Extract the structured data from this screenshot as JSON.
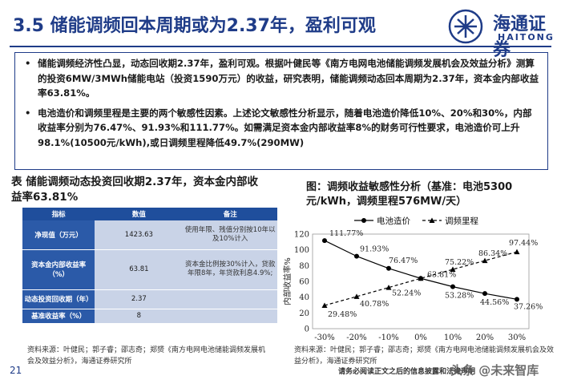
{
  "title": "3.5 储能调频回本周期或为2.37年，盈利可观",
  "logo": {
    "cn": "海通证券",
    "en": "HAITONG"
  },
  "bullets": [
    "储能调频经济性凸显，动态回收期2.37年，盈利可观。根据叶健民等《南方电网电池储能调频发展机会及效益分析》测算的投资6MW/3MWh储能电站（投资1590万元）的收益，研究表明，储能调频动态回本周期为2.37年，资本金内部收益率63.81%。",
    "电池造价和调频里程是主要的两个敏感性因素。上述论文敏感性分析显示，随着电池造价降低10%、20%和30%，内部收益率分别为76.47%、91.93%和111.77%。如需满足资本金内部收益率8%的财务可行性要求，电池造价可上升98.1%(10500元/kWh),或日调频里程降低49.7%(290MW)"
  ],
  "table_title": "表 储能调频动态投资回收期2.37年，资本金内部收益率63.81%",
  "table": {
    "headers": [
      "指标",
      "数值",
      "备注"
    ],
    "rows": [
      {
        "k": "净现值（万元）",
        "v": "1423.63",
        "n": "使用年限、残值分别按10年以及10%计入"
      },
      {
        "k": "资本金内部收益率（%）",
        "v": "63.81",
        "n": "资本金比例按30%计入，贷款年限8年，年贷款利息4.9%;"
      },
      {
        "k": "动态投资回收期（年）",
        "v": "2.37",
        "n": ""
      },
      {
        "k": "基准收益率（%）",
        "v": "8",
        "n": ""
      }
    ]
  },
  "source_left": "资料来源：叶健民；郭子睿；邵志奇；郑赟《南方电网电池储能调频发展机会及效益分析》，海通证券研究所",
  "chart_title": "图：调频收益敏感性分析（基准：电池5300元/kWh，调频里程576MW/天）",
  "chart_data": {
    "type": "line",
    "x": [
      "-30%",
      "-20%",
      "-10%",
      "0%",
      "10%",
      "20%",
      "30%"
    ],
    "ylabel": "内部收益率%",
    "ylim": [
      0,
      120
    ],
    "yticks": [
      "0",
      "20",
      "40",
      "60",
      "80",
      "100",
      "120"
    ],
    "legend_placement": "top",
    "series": [
      {
        "name": "电池造价",
        "values": [
          111.77,
          91.93,
          76.47,
          63.81,
          53.28,
          44.56,
          37.26
        ],
        "labels": [
          "111.77%",
          "91.93%",
          "76.47%",
          "63.81%",
          "53.28%",
          "44.56%",
          "37.26%"
        ],
        "color": "#000000",
        "style": "solid",
        "marker": "circle"
      },
      {
        "name": "调频里程",
        "values": [
          29.48,
          40.78,
          52.24,
          63.81,
          75.22,
          86.34,
          97.44
        ],
        "labels": [
          "29.48%",
          "40.78%",
          "52.24%",
          "63.81%",
          "75.22%",
          "86.34%",
          "97.44%"
        ],
        "color": "#000000",
        "style": "dashed",
        "marker": "triangle"
      }
    ]
  },
  "source_right": "资料来源：叶健民；郭子睿；邵志奇；郑赟《南方电网电池储能调频发展机会及效益分析》，海通证券研究所",
  "notice": "请务必阅读正文之后的信息披露和法律声明",
  "page_number": "21",
  "watermark": "头条 @未来智库",
  "colors": {
    "brand": "#1f3c88",
    "table_header": "#1f4e9c",
    "table_cell": "#c9d3e7"
  }
}
